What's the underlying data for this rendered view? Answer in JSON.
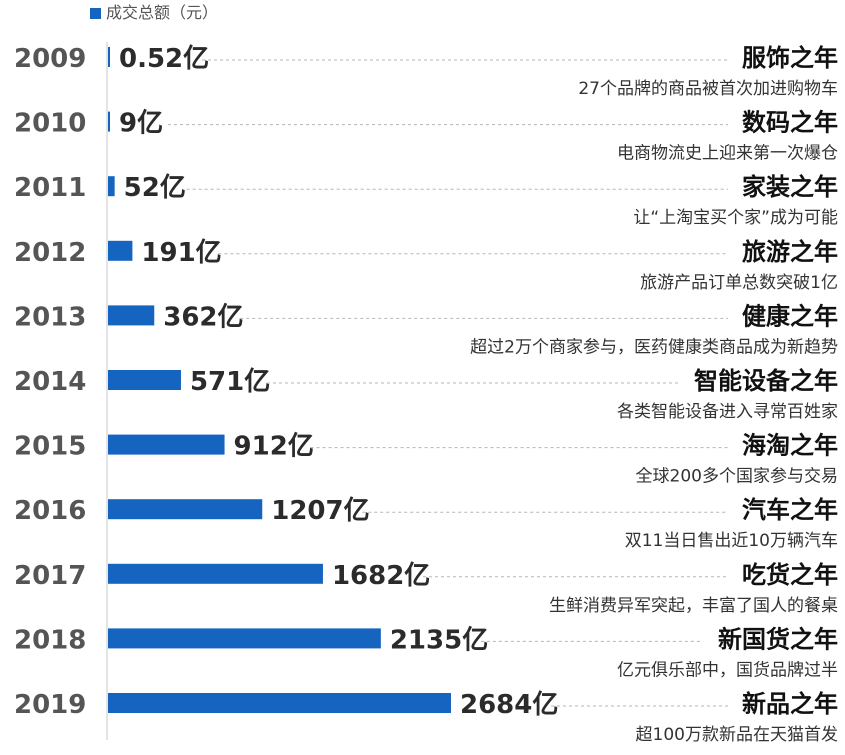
{
  "chart_data": {
    "type": "bar",
    "orientation": "horizontal",
    "legend": "成交总额（元）",
    "legend_position": "top-left",
    "bar_color": "#1565c0",
    "grid": false,
    "categories": [
      "2009",
      "2010",
      "2011",
      "2012",
      "2013",
      "2014",
      "2015",
      "2016",
      "2017",
      "2018",
      "2019"
    ],
    "values": [
      0.52,
      9,
      52,
      191,
      362,
      571,
      912,
      1207,
      1682,
      2135,
      2684
    ],
    "value_labels": [
      "0.52亿",
      "9亿",
      "52亿",
      "191亿",
      "362亿",
      "571亿",
      "912亿",
      "1207亿",
      "1682亿",
      "2135亿",
      "2684亿"
    ],
    "xlim": [
      0,
      2684
    ],
    "annotations": [
      {
        "title": "服饰之年",
        "desc": "27个品牌的商品被首次加进购物车"
      },
      {
        "title": "数码之年",
        "desc": "电商物流史上迎来第一次爆仓"
      },
      {
        "title": "家装之年",
        "desc": "让“上淘宝买个家”成为可能"
      },
      {
        "title": "旅游之年",
        "desc": "旅游产品订单总数突破1亿"
      },
      {
        "title": "健康之年",
        "desc": "超过2万个商家参与，医药健康类商品成为新趋势"
      },
      {
        "title": "智能设备之年",
        "desc": "各类智能设备进入寻常百姓家"
      },
      {
        "title": "海淘之年",
        "desc": "全球200多个国家参与交易"
      },
      {
        "title": "汽车之年",
        "desc": "双11当日售出近10万辆汽车"
      },
      {
        "title": "吃货之年",
        "desc": "生鲜消费异军突起，丰富了国人的餐桌"
      },
      {
        "title": "新国货之年",
        "desc": "亿元俱乐部中，国货品牌过半"
      },
      {
        "title": "新品之年",
        "desc": "超100万款新品在天猫首发"
      }
    ]
  }
}
